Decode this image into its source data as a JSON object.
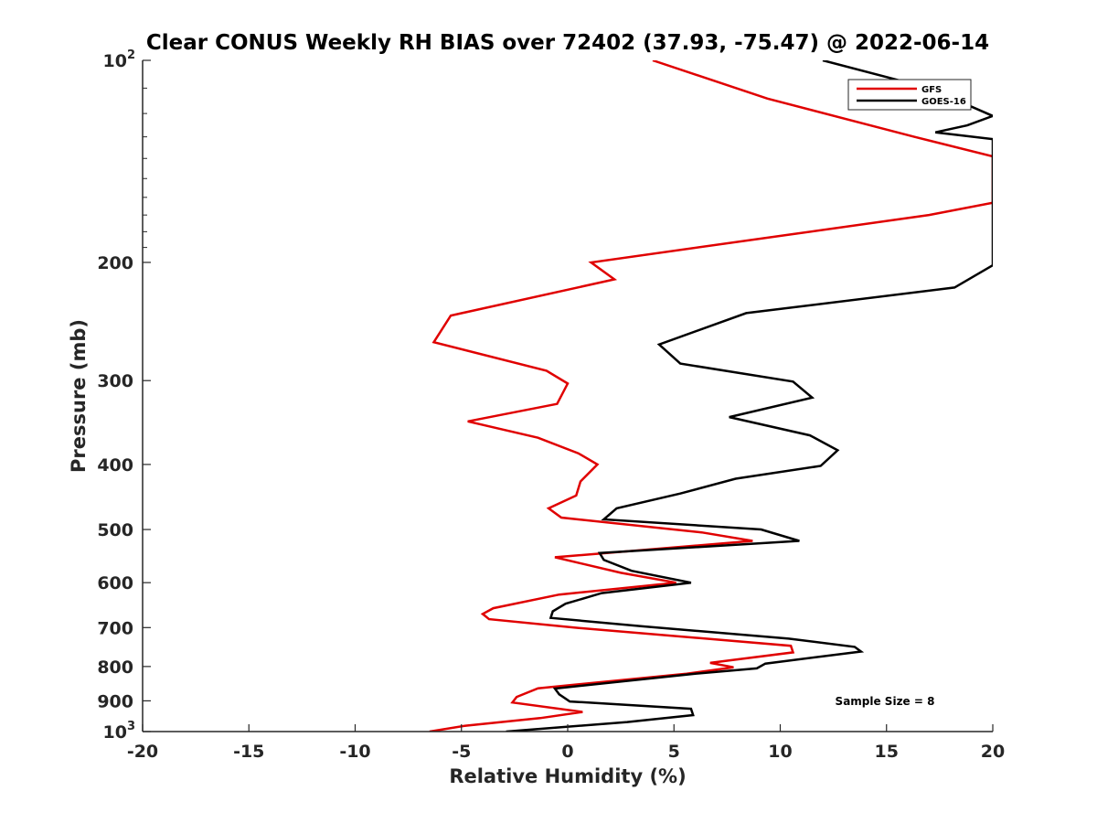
{
  "chart_data": {
    "type": "line",
    "title": "Clear CONUS Weekly RH BIAS over 72402 (37.93, -75.47) @ 2022-06-14",
    "xlabel": "Relative Humidity (%)",
    "ylabel": "Pressure (mb)",
    "xlim": [
      -20,
      20
    ],
    "ylim": [
      100,
      1000
    ],
    "yscale": "log",
    "y_reversed": true,
    "grid": false,
    "legend_position": "top-right",
    "x_ticks": [
      "-20",
      "-15",
      "-10",
      "-5",
      "0",
      "5",
      "10",
      "15",
      "20"
    ],
    "y_ticks": [
      {
        "value": 100,
        "label": "10",
        "sup": "2"
      },
      {
        "value": 200,
        "label": "200",
        "sup": ""
      },
      {
        "value": 300,
        "label": "300",
        "sup": ""
      },
      {
        "value": 400,
        "label": "400",
        "sup": ""
      },
      {
        "value": 500,
        "label": "500",
        "sup": ""
      },
      {
        "value": 600,
        "label": "600",
        "sup": ""
      },
      {
        "value": 700,
        "label": "700",
        "sup": ""
      },
      {
        "value": 800,
        "label": "800",
        "sup": ""
      },
      {
        "value": 900,
        "label": "900",
        "sup": ""
      },
      {
        "value": 1000,
        "label": "10",
        "sup": "3"
      }
    ],
    "series": [
      {
        "name": "GFS",
        "color": "#e00000",
        "points": [
          [
            4,
            100
          ],
          [
            9.4,
            114
          ],
          [
            16.3,
            130
          ],
          [
            20,
            139
          ],
          [
            20,
            163
          ],
          [
            17,
            170
          ],
          [
            1.1,
            200
          ],
          [
            2.2,
            212
          ],
          [
            -5.5,
            240
          ],
          [
            -6.3,
            263
          ],
          [
            -1,
            290
          ],
          [
            0,
            303
          ],
          [
            -0.5,
            325
          ],
          [
            -4.7,
            345
          ],
          [
            -1.4,
            365
          ],
          [
            0.5,
            385
          ],
          [
            1.4,
            400
          ],
          [
            0.6,
            424
          ],
          [
            0.4,
            445
          ],
          [
            -0.9,
            465
          ],
          [
            -0.3,
            480
          ],
          [
            6.3,
            505
          ],
          [
            8.7,
            520
          ],
          [
            -0.6,
            550
          ],
          [
            2.5,
            580
          ],
          [
            5.1,
            600
          ],
          [
            -0.4,
            625
          ],
          [
            -3.5,
            655
          ],
          [
            -4,
            668
          ],
          [
            -3.7,
            680
          ],
          [
            0.3,
            700
          ],
          [
            10.5,
            745
          ],
          [
            10.6,
            762
          ],
          [
            6.7,
            790
          ],
          [
            7.8,
            802
          ],
          [
            5.6,
            820
          ],
          [
            -1.4,
            862
          ],
          [
            -2.4,
            888
          ],
          [
            -2.6,
            905
          ],
          [
            0.7,
            935
          ],
          [
            -1.3,
            955
          ],
          [
            -4.8,
            980
          ],
          [
            -6.5,
            1000
          ]
        ]
      },
      {
        "name": "GOES-16",
        "color": "#000000",
        "points": [
          [
            12,
            100
          ],
          [
            17,
            110
          ],
          [
            20,
            121
          ],
          [
            18.8,
            125
          ],
          [
            17.3,
            128
          ],
          [
            20,
            131
          ],
          [
            20,
            202
          ],
          [
            18.2,
            218
          ],
          [
            8.4,
            238
          ],
          [
            4.3,
            265
          ],
          [
            5.3,
            283
          ],
          [
            10.6,
            301
          ],
          [
            11.5,
            318
          ],
          [
            7.6,
            340
          ],
          [
            11.4,
            362
          ],
          [
            12.7,
            381
          ],
          [
            11.9,
            402
          ],
          [
            7.9,
            420
          ],
          [
            5.3,
            442
          ],
          [
            2.3,
            465
          ],
          [
            1.7,
            483
          ],
          [
            9.1,
            500
          ],
          [
            10.9,
            520
          ],
          [
            1.5,
            542
          ],
          [
            1.7,
            555
          ],
          [
            3,
            576
          ],
          [
            5.8,
            600
          ],
          [
            1.6,
            622
          ],
          [
            -0.1,
            645
          ],
          [
            -0.7,
            662
          ],
          [
            -0.8,
            677
          ],
          [
            3.5,
            697
          ],
          [
            10.4,
            727
          ],
          [
            13.5,
            748
          ],
          [
            13.8,
            760
          ],
          [
            9.3,
            792
          ],
          [
            8.9,
            805
          ],
          [
            6,
            820
          ],
          [
            -0.6,
            863
          ],
          [
            -0.4,
            880
          ],
          [
            0.1,
            902
          ],
          [
            5.8,
            925
          ],
          [
            5.9,
            945
          ],
          [
            2.8,
            968
          ],
          [
            -2.9,
            1000
          ]
        ]
      }
    ],
    "annotations": [
      {
        "text": "Sample Size = 8"
      }
    ]
  }
}
